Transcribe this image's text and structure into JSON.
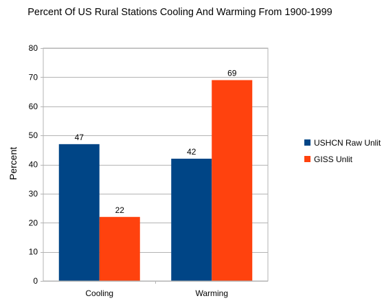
{
  "chart_data": {
    "type": "bar",
    "title": "Percent Of US Rural Stations Cooling And Warming From 1900-1999",
    "xlabel": "",
    "ylabel": "Percent",
    "categories": [
      "Cooling",
      "Warming"
    ],
    "series": [
      {
        "name": "USHCN Raw Unlit",
        "values": [
          47,
          42
        ],
        "data_labels": [
          "47",
          "42"
        ],
        "color": "#004586"
      },
      {
        "name": "GISS Unlit",
        "values": [
          22,
          69
        ],
        "data_labels": [
          "22",
          "69"
        ],
        "color": "#ff420e"
      }
    ],
    "ylim": [
      0,
      80
    ],
    "yticks": [
      0,
      10,
      20,
      30,
      40,
      50,
      60,
      70,
      80
    ],
    "grid": true,
    "legend": "right"
  }
}
